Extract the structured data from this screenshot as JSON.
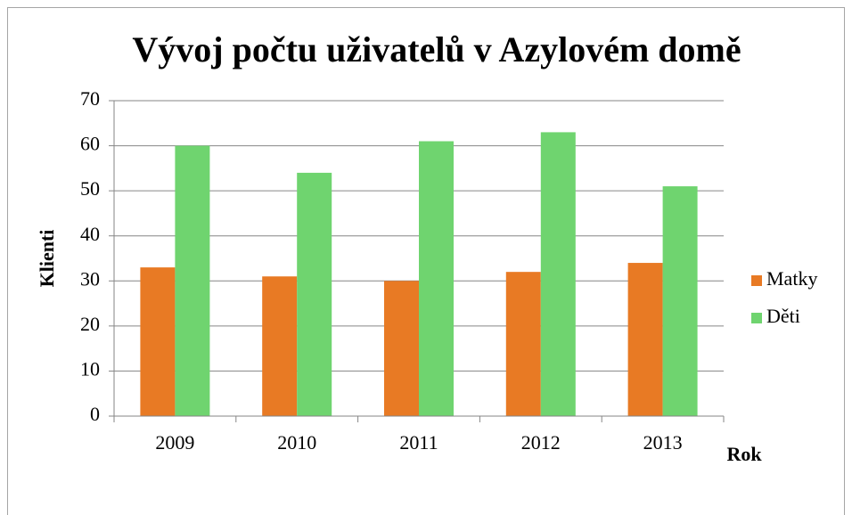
{
  "chart_data": {
    "type": "bar",
    "title": "Vývoj počtu uživatelů v Azylovém domě",
    "xlabel": "Rok",
    "ylabel": "Klienti",
    "categories": [
      "2009",
      "2010",
      "2011",
      "2012",
      "2013"
    ],
    "series": [
      {
        "name": "Matky",
        "color": "#e87a24",
        "values": [
          33,
          31,
          30,
          32,
          34
        ]
      },
      {
        "name": "Děti",
        "color": "#6fd46f",
        "values": [
          60,
          54,
          61,
          63,
          51
        ]
      }
    ],
    "ylim": [
      0,
      70
    ],
    "yticks": [
      0,
      10,
      20,
      30,
      40,
      50,
      60,
      70
    ],
    "grid": true,
    "legend": "right"
  }
}
